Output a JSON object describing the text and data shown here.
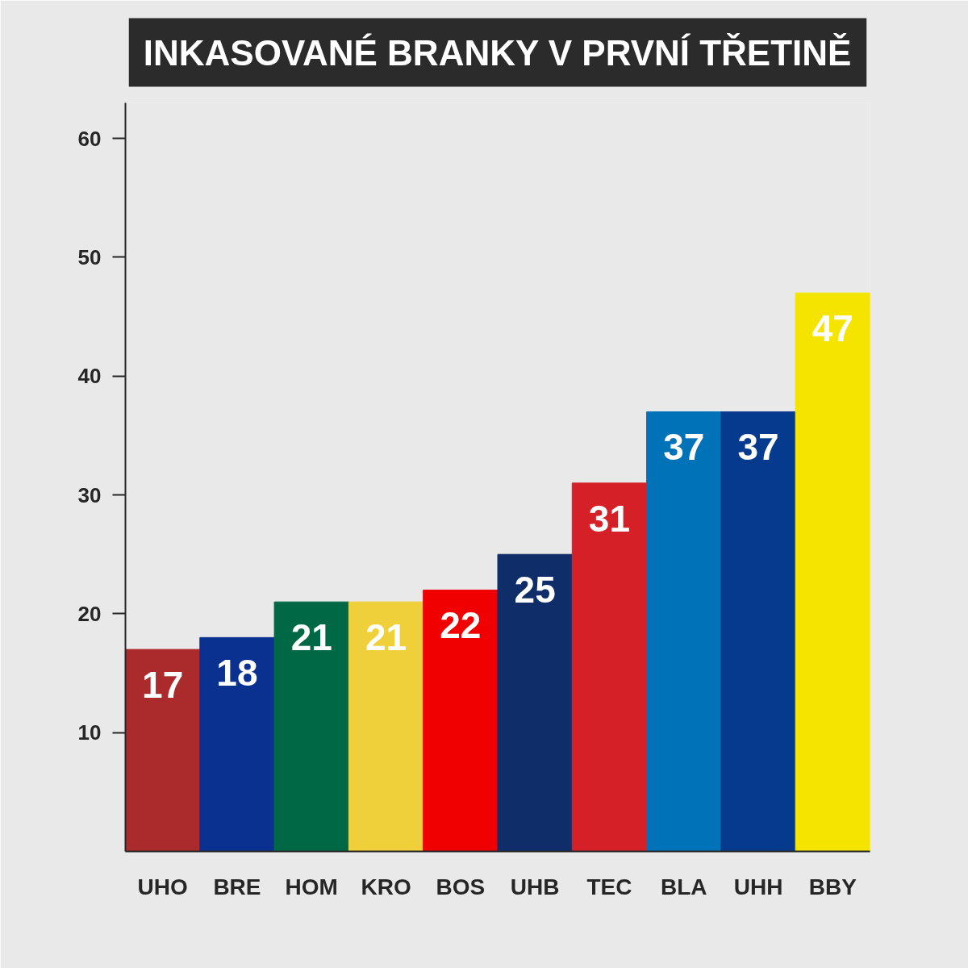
{
  "chart_data": {
    "type": "bar",
    "title": "INKASOVANÉ BRANKY V PRVNÍ TŘETINĚ",
    "categories": [
      "UHO",
      "BRE",
      "HOM",
      "KRO",
      "BOS",
      "UHB",
      "TEC",
      "BLA",
      "UHH",
      "BBY"
    ],
    "values": [
      17,
      18,
      21,
      21,
      22,
      25,
      31,
      37,
      37,
      47
    ],
    "colors": [
      "#ab2a2c",
      "#0a3090",
      "#006845",
      "#f0d03a",
      "#f00000",
      "#0f2d68",
      "#d52027",
      "#0072b8",
      "#053a8e",
      "#f5e400"
    ],
    "ylim": [
      0,
      63
    ],
    "yticks": [
      10,
      20,
      30,
      40,
      50,
      60
    ],
    "data_labels": true
  }
}
